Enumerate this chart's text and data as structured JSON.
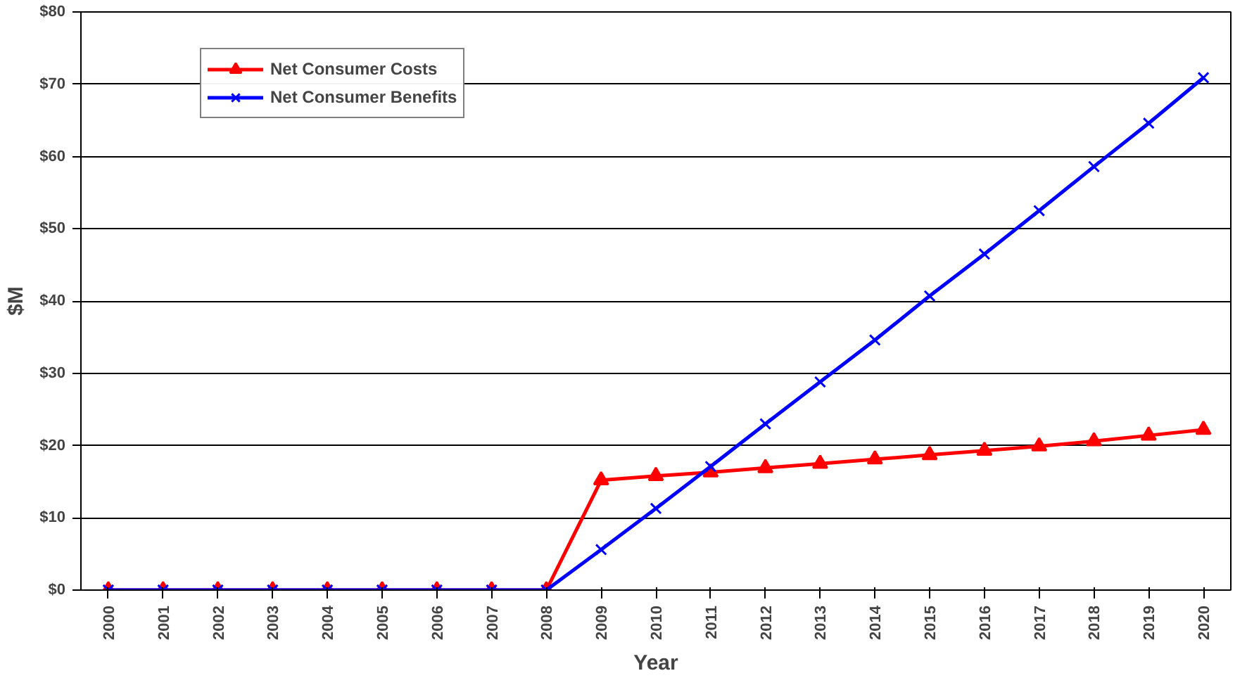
{
  "chart_data": {
    "type": "line",
    "xlabel": "Year",
    "ylabel": "$M",
    "categories": [
      "2000",
      "2001",
      "2002",
      "2003",
      "2004",
      "2005",
      "2006",
      "2007",
      "2008",
      "2009",
      "2010",
      "2011",
      "2012",
      "2013",
      "2014",
      "2015",
      "2016",
      "2017",
      "2018",
      "2019",
      "2020"
    ],
    "series": [
      {
        "name": "Net Consumer Costs",
        "color": "#ff0000",
        "marker": "triangle",
        "values": [
          0,
          0,
          0,
          0,
          0,
          0,
          0,
          0,
          0,
          15.2,
          15.8,
          16.3,
          16.9,
          17.5,
          18.1,
          18.7,
          19.3,
          19.9,
          20.6,
          21.4,
          22.2
        ]
      },
      {
        "name": "Net Consumer Benefits",
        "color": "#0000ff",
        "marker": "cross",
        "values": [
          0,
          0,
          0,
          0,
          0,
          0,
          0,
          0,
          0,
          5.6,
          11.3,
          17.1,
          23.0,
          28.8,
          34.6,
          40.7,
          46.5,
          52.5,
          58.6,
          64.6,
          70.9
        ]
      }
    ],
    "ylim": [
      0,
      80
    ],
    "yticks": [
      {
        "value": 0,
        "label": "$0"
      },
      {
        "value": 10,
        "label": "$10"
      },
      {
        "value": 20,
        "label": "$20"
      },
      {
        "value": 30,
        "label": "$30"
      },
      {
        "value": 40,
        "label": "$40"
      },
      {
        "value": 50,
        "label": "$50"
      },
      {
        "value": 60,
        "label": "$60"
      },
      {
        "value": 70,
        "label": "$70"
      },
      {
        "value": 80,
        "label": "$80"
      }
    ],
    "grid": "y",
    "legend": "top left",
    "line_style": "solid"
  }
}
